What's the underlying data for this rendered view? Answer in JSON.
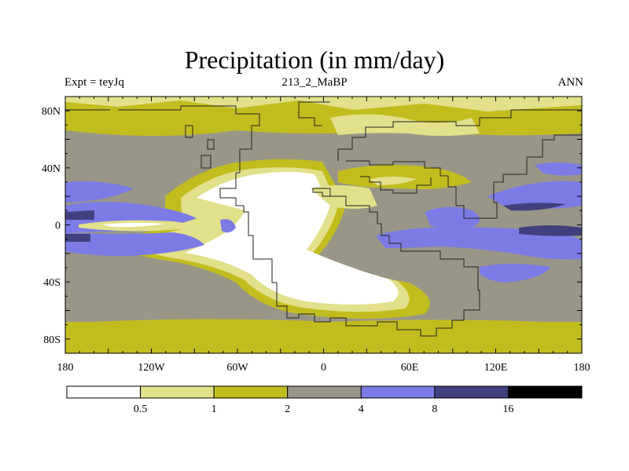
{
  "title": "Precipitation (in mm/day)",
  "subtitle_left": "Expt = teyJq",
  "subtitle_center": "213_2_MaBP",
  "subtitle_right": "ANN",
  "y_ticks": [
    {
      "label": "80N",
      "lat": 80
    },
    {
      "label": "40N",
      "lat": 40
    },
    {
      "label": "0",
      "lat": 0
    },
    {
      "label": "40S",
      "lat": -40
    },
    {
      "label": "80S",
      "lat": -80
    }
  ],
  "x_ticks": [
    {
      "label": "180",
      "lon": -180
    },
    {
      "label": "120W",
      "lon": -120
    },
    {
      "label": "60W",
      "lon": -60
    },
    {
      "label": "0",
      "lon": 0
    },
    {
      "label": "60E",
      "lon": 60
    },
    {
      "label": "120E",
      "lon": 120
    },
    {
      "label": "180",
      "lon": 180
    }
  ],
  "colorbar": {
    "boundaries": [
      "0.5",
      "1",
      "2",
      "4",
      "8",
      "16"
    ],
    "colors": [
      "#ffffff",
      "#e2e08a",
      "#c2bd1e",
      "#999688",
      "#7b7be6",
      "#40407e",
      "#000000"
    ]
  },
  "map": {
    "lon_range": [
      -180,
      180
    ],
    "lat_range": [
      -90,
      90
    ]
  }
}
